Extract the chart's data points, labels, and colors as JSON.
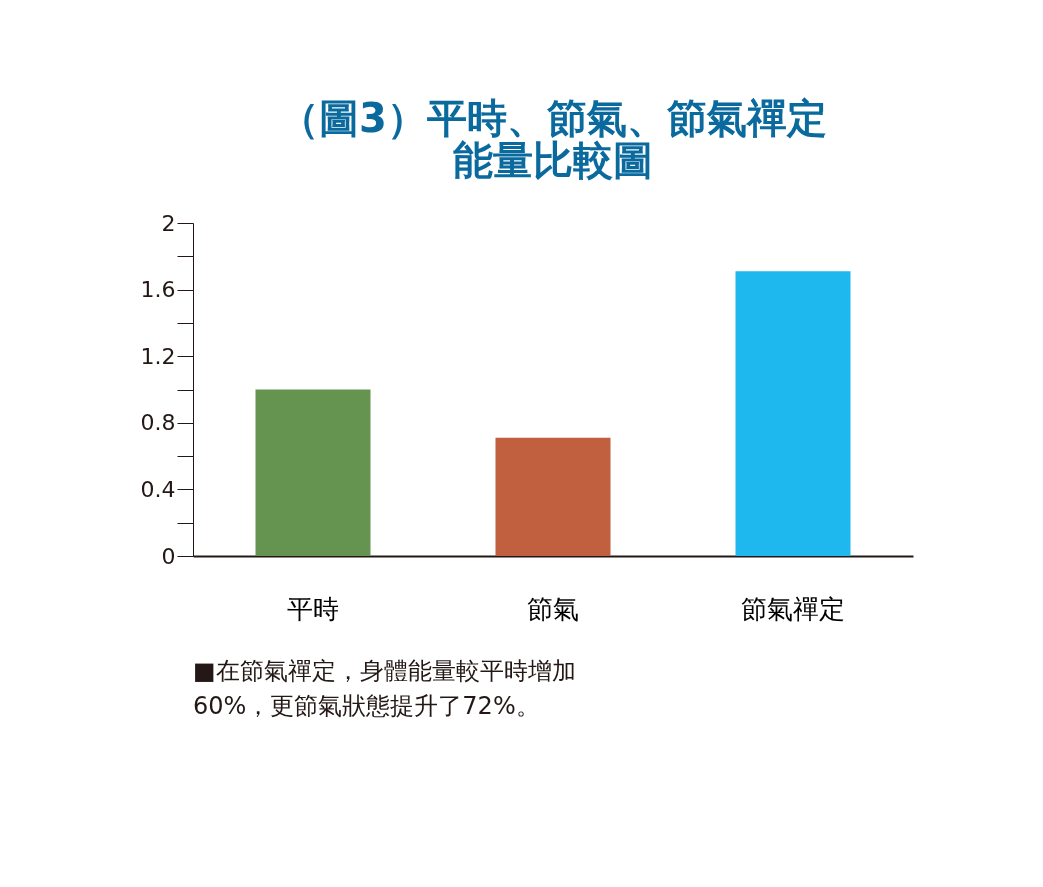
{
  "chart_data": {
    "type": "bar",
    "title": "（圖3）平時、節氣、節氣禪定能量比較圖",
    "categories": [
      "平時",
      "節氣",
      "節氣禪定"
    ],
    "values": [
      1.0,
      0.71,
      1.71
    ],
    "colors": [
      "#64944f",
      "#c0603f",
      "#1eb8ee"
    ],
    "ylim": [
      0,
      2
    ],
    "yticks": [
      0,
      {
        "value": 0.2,
        "label": null
      },
      0.4,
      {
        "value": 0.6,
        "label": null
      },
      0.8,
      {
        "value": 1.0,
        "label": null
      },
      1.2,
      {
        "value": 1.4,
        "label": null
      },
      1.6,
      {
        "value": 1.8,
        "label": null
      },
      2
    ],
    "grid": false,
    "annotations": [
      "■在節氣禪定，身體能量較平時增加",
      "60%，更節氣狀態提升了72%。"
    ]
  }
}
